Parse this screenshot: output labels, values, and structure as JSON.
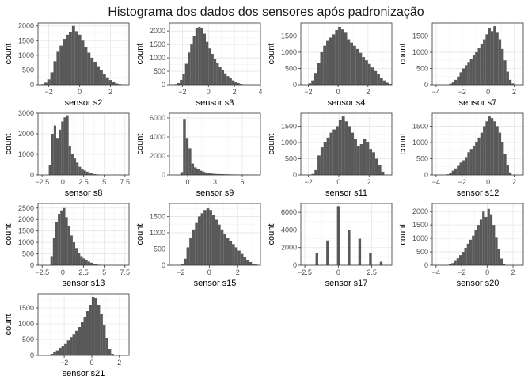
{
  "figure": {
    "title": "Histograma dos dados dos sensores após padronização"
  },
  "chart_data": [
    {
      "type": "bar",
      "title": "",
      "xlabel": "sensor s2",
      "ylabel": "count",
      "xlim": [
        -2.7,
        3.2
      ],
      "ylim": [
        0,
        2100
      ],
      "xticks": [
        -2,
        0,
        2,
        4
      ],
      "yticks": [
        0,
        500,
        1000,
        1500,
        2000
      ],
      "bin_start": -2.5,
      "bin_width": 0.2,
      "values": [
        20,
        70,
        180,
        420,
        800,
        1120,
        1330,
        1560,
        1700,
        1800,
        2000,
        1820,
        1700,
        1500,
        1270,
        1090,
        920,
        780,
        630,
        500,
        370,
        250,
        160,
        90,
        40,
        20
      ]
    },
    {
      "type": "bar",
      "title": "",
      "xlabel": "sensor s3",
      "ylabel": "count",
      "xlim": [
        -3.0,
        4.0
      ],
      "ylim": [
        0,
        2300
      ],
      "xticks": [
        -2,
        0,
        2,
        4
      ],
      "yticks": [
        0,
        500,
        1000,
        1500,
        2000
      ],
      "bin_start": -2.6,
      "bin_width": 0.2,
      "values": [
        20,
        60,
        180,
        400,
        780,
        1200,
        1500,
        1800,
        2100,
        2150,
        2100,
        1900,
        1600,
        1350,
        1150,
        950,
        800,
        650,
        540,
        420,
        320,
        240,
        160,
        100,
        60,
        30,
        15
      ]
    },
    {
      "type": "bar",
      "title": "",
      "xlabel": "sensor s4",
      "ylabel": "count",
      "xlim": [
        -2.5,
        3.6
      ],
      "ylim": [
        0,
        1900
      ],
      "xticks": [
        -2,
        0,
        2
      ],
      "yticks": [
        0,
        500,
        1000,
        1500
      ],
      "bin_start": -2.0,
      "bin_width": 0.2,
      "values": [
        40,
        130,
        360,
        680,
        1000,
        1200,
        1350,
        1450,
        1550,
        1680,
        1780,
        1700,
        1600,
        1400,
        1300,
        1200,
        1100,
        980,
        850,
        750,
        640,
        530,
        420,
        320,
        220,
        130,
        60,
        20
      ]
    },
    {
      "type": "bar",
      "title": "",
      "xlabel": "sensor s7",
      "ylabel": "count",
      "xlim": [
        -4.3,
        2.7
      ],
      "ylim": [
        0,
        1900
      ],
      "xticks": [
        -4,
        -2,
        0,
        2
      ],
      "yticks": [
        0,
        500,
        1000,
        1500
      ],
      "bin_start": -3.0,
      "bin_width": 0.2,
      "values": [
        30,
        70,
        150,
        250,
        380,
        500,
        600,
        700,
        800,
        900,
        1000,
        1120,
        1260,
        1400,
        1550,
        1750,
        1650,
        1800,
        1600,
        1400,
        1100,
        750,
        400,
        150,
        40
      ]
    },
    {
      "type": "bar",
      "title": "",
      "xlabel": "sensor s8",
      "ylabel": "count",
      "xlim": [
        -3.0,
        8.0
      ],
      "ylim": [
        0,
        3000
      ],
      "xticks": [
        -2.5,
        0,
        2.5,
        5,
        7.5
      ],
      "yticks": [
        0,
        1000,
        2000,
        3000
      ],
      "bin_start": -1.7,
      "bin_width": 0.3,
      "values": [
        500,
        2000,
        2400,
        1800,
        2200,
        2600,
        2800,
        2900,
        1400,
        1000,
        800,
        600,
        400,
        300,
        220,
        160,
        110,
        70,
        40,
        25,
        10
      ]
    },
    {
      "type": "bar",
      "title": "",
      "xlabel": "sensor s9",
      "ylabel": "count",
      "xlim": [
        -2.0,
        8.0
      ],
      "ylim": [
        0,
        6500
      ],
      "xticks": [
        0,
        3,
        6
      ],
      "yticks": [
        0,
        2000,
        4000,
        6000
      ],
      "bin_start": -0.8,
      "bin_width": 0.3,
      "values": [
        300,
        5900,
        3900,
        2800,
        1200,
        800,
        600,
        450,
        350,
        260,
        200,
        150,
        120,
        100,
        90,
        80,
        70,
        60,
        55,
        50,
        45,
        40,
        35,
        30,
        25
      ]
    },
    {
      "type": "bar",
      "title": "",
      "xlabel": "sensor s11",
      "ylabel": "count",
      "xlim": [
        -2.5,
        3.5
      ],
      "ylim": [
        0,
        1900
      ],
      "xticks": [
        -2,
        0,
        2
      ],
      "yticks": [
        0,
        500,
        1000,
        1500
      ],
      "bin_start": -1.8,
      "bin_width": 0.2,
      "values": [
        30,
        150,
        600,
        850,
        1000,
        1150,
        1300,
        1400,
        1500,
        1700,
        1800,
        1650,
        1500,
        1300,
        1100,
        900,
        950,
        1100,
        1000,
        800,
        700,
        500,
        300,
        100
      ]
    },
    {
      "type": "bar",
      "title": "",
      "xlabel": "sensor s12",
      "ylabel": "count",
      "xlim": [
        -4.3,
        2.7
      ],
      "ylim": [
        0,
        1900
      ],
      "xticks": [
        -4,
        -2,
        0,
        2
      ],
      "yticks": [
        0,
        500,
        1000,
        1500
      ],
      "bin_start": -3.2,
      "bin_width": 0.2,
      "values": [
        20,
        60,
        130,
        200,
        280,
        380,
        450,
        550,
        700,
        800,
        900,
        1000,
        1150,
        1300,
        1500,
        1650,
        1800,
        1750,
        1650,
        1500,
        1300,
        1000,
        650,
        300,
        80
      ]
    },
    {
      "type": "bar",
      "title": "",
      "xlabel": "sensor s13",
      "ylabel": "count",
      "xlim": [
        -3.0,
        8.0
      ],
      "ylim": [
        0,
        2700
      ],
      "xticks": [
        -2.5,
        0,
        2.5,
        5,
        7.5
      ],
      "yticks": [
        0,
        500,
        1000,
        1500,
        2000,
        2500
      ],
      "bin_start": -1.5,
      "bin_width": 0.3,
      "values": [
        400,
        1200,
        1900,
        2250,
        2400,
        2500,
        2100,
        1700,
        1300,
        1000,
        750,
        550,
        400,
        300,
        220,
        160,
        110,
        70,
        40,
        20
      ]
    },
    {
      "type": "bar",
      "title": "",
      "xlabel": "sensor s15",
      "ylabel": "count",
      "xlim": [
        -2.8,
        3.6
      ],
      "ylim": [
        0,
        1900
      ],
      "xticks": [
        -2,
        0,
        2
      ],
      "yticks": [
        0,
        500,
        1000,
        1500
      ],
      "bin_start": -2.0,
      "bin_width": 0.2,
      "values": [
        50,
        200,
        550,
        850,
        1100,
        1300,
        1500,
        1600,
        1700,
        1750,
        1700,
        1550,
        1400,
        1250,
        1100,
        950,
        850,
        750,
        650,
        550,
        450,
        350,
        250,
        170,
        100,
        50,
        20
      ]
    },
    {
      "type": "bar",
      "title": "",
      "xlabel": "sensor s17",
      "ylabel": "count",
      "xlim": [
        -2.8,
        4.0
      ],
      "ylim": [
        0,
        7000
      ],
      "xticks": [
        -2.5,
        0,
        2.5
      ],
      "yticks": [
        0,
        2000,
        4000,
        6000
      ],
      "bin_start": -1.7,
      "bin_width": 0.2,
      "values": [
        1400,
        0,
        0,
        0,
        2800,
        0,
        0,
        0,
        6700,
        0,
        0,
        0,
        4000,
        0,
        0,
        0,
        3000,
        0,
        0,
        0,
        1400,
        0,
        0,
        0,
        400
      ]
    },
    {
      "type": "bar",
      "title": "",
      "xlabel": "sensor s20",
      "ylabel": "count",
      "xlim": [
        -4.3,
        2.8
      ],
      "ylim": [
        0,
        2300
      ],
      "xticks": [
        -4,
        -2,
        0,
        2
      ],
      "yticks": [
        0,
        500,
        1000,
        1500,
        2000
      ],
      "bin_start": -3.0,
      "bin_width": 0.2,
      "values": [
        30,
        80,
        160,
        260,
        380,
        500,
        650,
        800,
        950,
        1100,
        1300,
        1500,
        1700,
        2000,
        1800,
        2100,
        1900,
        1500,
        1050,
        600,
        250,
        60
      ]
    },
    {
      "type": "bar",
      "title": "",
      "xlabel": "sensor s21",
      "ylabel": "count",
      "xlim": [
        -3.9,
        2.7
      ],
      "ylim": [
        0,
        1950
      ],
      "xticks": [
        -2,
        0,
        2
      ],
      "yticks": [
        0,
        500,
        1000,
        1500
      ],
      "bin_start": -3.2,
      "bin_width": 0.2,
      "values": [
        20,
        50,
        100,
        160,
        230,
        300,
        380,
        470,
        570,
        670,
        780,
        900,
        1050,
        1200,
        1400,
        1600,
        1850,
        1800,
        1600,
        1300,
        950,
        550,
        200,
        50
      ]
    }
  ]
}
